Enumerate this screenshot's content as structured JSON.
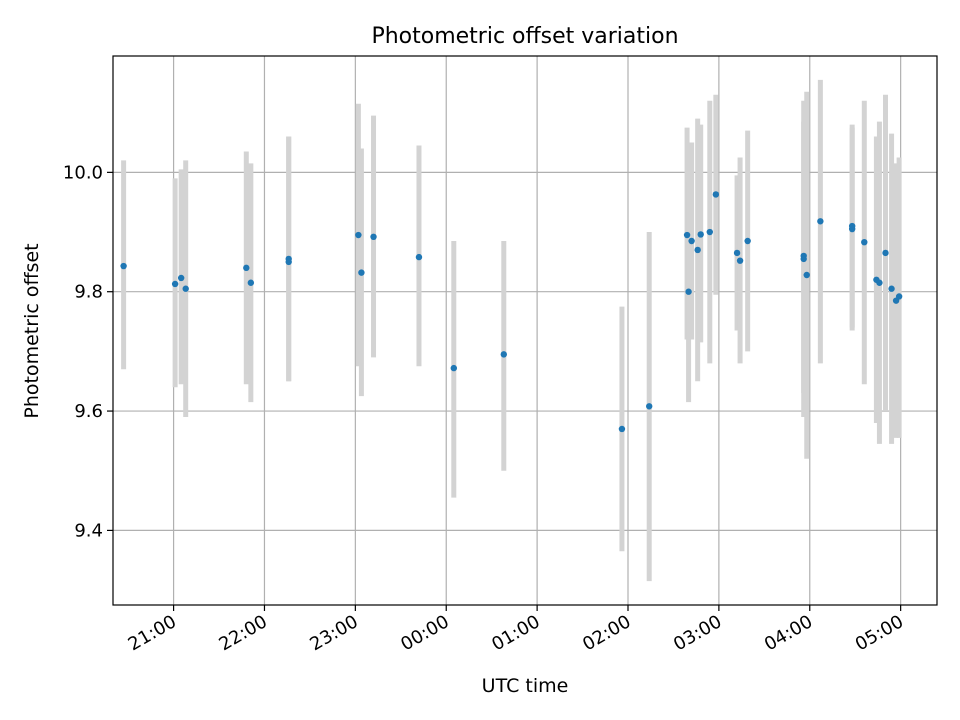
{
  "chart_data": {
    "type": "scatter",
    "title": "Photometric offset variation",
    "xlabel": "UTC time",
    "ylabel": "Photometric offset",
    "grid": true,
    "x_tick_labels": [
      "21:00",
      "22:00",
      "23:00",
      "00:00",
      "01:00",
      "02:00",
      "03:00",
      "04:00",
      "05:00"
    ],
    "y_ticks": [
      9.4,
      9.6,
      9.8,
      10.0
    ],
    "y_tick_labels": [
      "9.4",
      "9.6",
      "9.8",
      "10.0"
    ],
    "xlim": [
      "20:20",
      "05:24"
    ],
    "ylim": [
      9.275,
      10.195
    ],
    "colors": {
      "marker": "#1f77b4",
      "errorbar": "#d3d3d3",
      "grid": "#b0b0b0"
    },
    "series": [
      {
        "points": [
          {
            "t": "20:27",
            "y": 9.843,
            "lo": 9.67,
            "hi": 10.02
          },
          {
            "t": "21:01",
            "y": 9.813,
            "lo": 9.64,
            "hi": 9.99
          },
          {
            "t": "21:05",
            "y": 9.823,
            "lo": 9.645,
            "hi": 10.005
          },
          {
            "t": "21:08",
            "y": 9.805,
            "lo": 9.59,
            "hi": 10.02
          },
          {
            "t": "21:48",
            "y": 9.84,
            "lo": 9.645,
            "hi": 10.035
          },
          {
            "t": "21:51",
            "y": 9.815,
            "lo": 9.615,
            "hi": 10.015
          },
          {
            "t": "22:16",
            "y": 9.855,
            "lo": 9.65,
            "hi": 10.06
          },
          {
            "t": "22:16",
            "y": 9.85,
            "lo": 9.65,
            "hi": 10.06
          },
          {
            "t": "23:02",
            "y": 9.895,
            "lo": 9.675,
            "hi": 10.115
          },
          {
            "t": "23:04",
            "y": 9.832,
            "lo": 9.625,
            "hi": 10.04
          },
          {
            "t": "23:12",
            "y": 9.892,
            "lo": 9.69,
            "hi": 10.095
          },
          {
            "t": "23:42",
            "y": 9.858,
            "lo": 9.675,
            "hi": 10.045
          },
          {
            "t": "00:05",
            "y": 9.672,
            "lo": 9.455,
            "hi": 9.885
          },
          {
            "t": "00:38",
            "y": 9.695,
            "lo": 9.5,
            "hi": 9.885
          },
          {
            "t": "01:56",
            "y": 9.57,
            "lo": 9.365,
            "hi": 9.775
          },
          {
            "t": "02:14",
            "y": 9.608,
            "lo": 9.315,
            "hi": 9.9
          },
          {
            "t": "02:39",
            "y": 9.895,
            "lo": 9.72,
            "hi": 10.075
          },
          {
            "t": "02:40",
            "y": 9.8,
            "lo": 9.615,
            "hi": 9.985
          },
          {
            "t": "02:42",
            "y": 9.885,
            "lo": 9.72,
            "hi": 10.05
          },
          {
            "t": "02:46",
            "y": 9.87,
            "lo": 9.65,
            "hi": 10.09
          },
          {
            "t": "02:48",
            "y": 9.896,
            "lo": 9.715,
            "hi": 10.08
          },
          {
            "t": "02:54",
            "y": 9.9,
            "lo": 9.68,
            "hi": 10.12
          },
          {
            "t": "02:58",
            "y": 9.963,
            "lo": 9.795,
            "hi": 10.13
          },
          {
            "t": "03:12",
            "y": 9.865,
            "lo": 9.735,
            "hi": 9.995
          },
          {
            "t": "03:14",
            "y": 9.852,
            "lo": 9.68,
            "hi": 10.025
          },
          {
            "t": "03:19",
            "y": 9.885,
            "lo": 9.7,
            "hi": 10.07
          },
          {
            "t": "03:56",
            "y": 9.86,
            "lo": 9.63,
            "hi": 10.085
          },
          {
            "t": "03:56",
            "y": 9.855,
            "lo": 9.59,
            "hi": 10.12
          },
          {
            "t": "03:58",
            "y": 9.828,
            "lo": 9.52,
            "hi": 10.135
          },
          {
            "t": "04:07",
            "y": 9.918,
            "lo": 9.68,
            "hi": 10.155
          },
          {
            "t": "04:28",
            "y": 9.91,
            "lo": 9.735,
            "hi": 10.08
          },
          {
            "t": "04:28",
            "y": 9.905,
            "lo": 9.74,
            "hi": 10.075
          },
          {
            "t": "04:36",
            "y": 9.883,
            "lo": 9.645,
            "hi": 10.12
          },
          {
            "t": "04:44",
            "y": 9.82,
            "lo": 9.58,
            "hi": 10.06
          },
          {
            "t": "04:46",
            "y": 9.815,
            "lo": 9.545,
            "hi": 10.085
          },
          {
            "t": "04:50",
            "y": 9.865,
            "lo": 9.6,
            "hi": 10.13
          },
          {
            "t": "04:54",
            "y": 9.805,
            "lo": 9.545,
            "hi": 10.065
          },
          {
            "t": "04:57",
            "y": 9.785,
            "lo": 9.555,
            "hi": 10.015
          },
          {
            "t": "04:59",
            "y": 9.792,
            "lo": 9.555,
            "hi": 10.025
          }
        ]
      }
    ]
  }
}
